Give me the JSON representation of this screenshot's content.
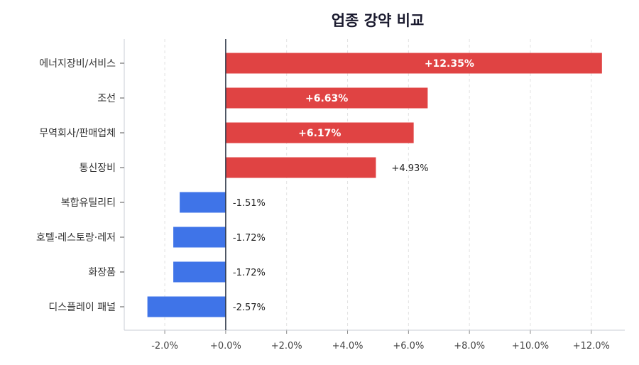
{
  "chart_data": {
    "type": "bar",
    "orientation": "horizontal",
    "title": "업종 강약 비교",
    "categories": [
      "에너지장비/서비스",
      "조선",
      "무역회사/판매업체",
      "통신장비",
      "복합유틸리티",
      "호텔·레스토랑·레저",
      "화장품",
      "디스플레이 패널"
    ],
    "values": [
      12.35,
      6.63,
      6.17,
      4.93,
      -1.51,
      -1.72,
      -1.72,
      -2.57
    ],
    "data_labels": [
      "+12.35%",
      "+6.63%",
      "+6.17%",
      "+4.93%",
      "-1.51%",
      "-1.72%",
      "-1.72%",
      "-2.57%"
    ],
    "xticks": [
      "-2.0%",
      "+0.0%",
      "+2.0%",
      "+4.0%",
      "+6.0%",
      "+8.0%",
      "+10.0%",
      "+12.0%"
    ],
    "xtick_values": [
      -2,
      0,
      2,
      4,
      6,
      8,
      10,
      12
    ],
    "xlim": [
      -3.33,
      13.1
    ],
    "xlabel": "",
    "ylabel": "",
    "grid": "vertical dashed",
    "colors": {
      "positive": "#E04343",
      "negative": "#3F74E8",
      "zero_line": "#2d3748"
    }
  }
}
